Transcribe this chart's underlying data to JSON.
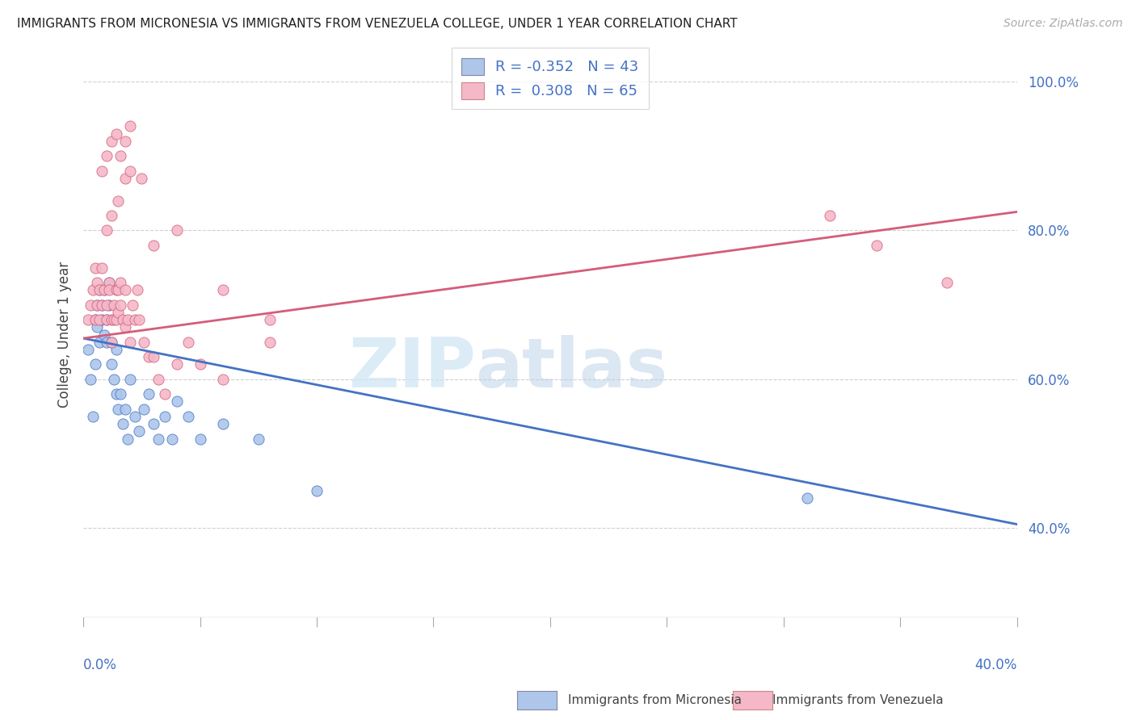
{
  "title": "IMMIGRANTS FROM MICRONESIA VS IMMIGRANTS FROM VENEZUELA COLLEGE, UNDER 1 YEAR CORRELATION CHART",
  "source": "Source: ZipAtlas.com",
  "ylabel": "College, Under 1 year",
  "ylabel_right_ticks": [
    "40.0%",
    "60.0%",
    "80.0%",
    "100.0%"
  ],
  "ylabel_right_vals": [
    0.4,
    0.6,
    0.8,
    1.0
  ],
  "xmin": 0.0,
  "xmax": 0.4,
  "ymin": 0.28,
  "ymax": 1.04,
  "legend_blue_R": "-0.352",
  "legend_blue_N": "43",
  "legend_pink_R": "0.308",
  "legend_pink_N": "65",
  "blue_color": "#adc6ea",
  "pink_color": "#f4b8c8",
  "line_blue_color": "#4472c4",
  "line_pink_color": "#d45c7a",
  "watermark_zip": "ZIP",
  "watermark_atlas": "atlas",
  "blue_line_x0": 0.0,
  "blue_line_y0": 0.655,
  "blue_line_x1": 0.4,
  "blue_line_y1": 0.405,
  "pink_line_x0": 0.0,
  "pink_line_y0": 0.655,
  "pink_line_x1": 0.4,
  "pink_line_y1": 0.825,
  "blue_points_x": [
    0.002,
    0.003,
    0.004,
    0.005,
    0.005,
    0.006,
    0.006,
    0.007,
    0.007,
    0.008,
    0.008,
    0.009,
    0.009,
    0.01,
    0.01,
    0.011,
    0.011,
    0.012,
    0.012,
    0.013,
    0.014,
    0.014,
    0.015,
    0.016,
    0.017,
    0.018,
    0.019,
    0.02,
    0.022,
    0.024,
    0.026,
    0.028,
    0.03,
    0.032,
    0.035,
    0.038,
    0.04,
    0.045,
    0.05,
    0.06,
    0.075,
    0.1,
    0.31
  ],
  "blue_points_y": [
    0.64,
    0.6,
    0.55,
    0.68,
    0.62,
    0.7,
    0.67,
    0.72,
    0.65,
    0.68,
    0.7,
    0.66,
    0.72,
    0.68,
    0.65,
    0.7,
    0.73,
    0.65,
    0.62,
    0.6,
    0.58,
    0.64,
    0.56,
    0.58,
    0.54,
    0.56,
    0.52,
    0.6,
    0.55,
    0.53,
    0.56,
    0.58,
    0.54,
    0.52,
    0.55,
    0.52,
    0.57,
    0.55,
    0.52,
    0.54,
    0.52,
    0.45,
    0.44
  ],
  "pink_points_x": [
    0.002,
    0.003,
    0.004,
    0.005,
    0.005,
    0.006,
    0.006,
    0.007,
    0.007,
    0.008,
    0.008,
    0.009,
    0.01,
    0.01,
    0.011,
    0.011,
    0.012,
    0.012,
    0.013,
    0.013,
    0.014,
    0.014,
    0.015,
    0.015,
    0.016,
    0.016,
    0.017,
    0.018,
    0.018,
    0.019,
    0.02,
    0.021,
    0.022,
    0.023,
    0.024,
    0.026,
    0.028,
    0.03,
    0.032,
    0.035,
    0.04,
    0.045,
    0.05,
    0.06,
    0.08,
    0.01,
    0.012,
    0.015,
    0.018,
    0.02,
    0.008,
    0.01,
    0.012,
    0.014,
    0.016,
    0.018,
    0.02,
    0.025,
    0.03,
    0.04,
    0.06,
    0.08,
    0.32,
    0.34,
    0.37
  ],
  "pink_points_y": [
    0.68,
    0.7,
    0.72,
    0.68,
    0.75,
    0.73,
    0.7,
    0.68,
    0.72,
    0.7,
    0.75,
    0.72,
    0.7,
    0.68,
    0.73,
    0.72,
    0.68,
    0.65,
    0.7,
    0.68,
    0.72,
    0.68,
    0.72,
    0.69,
    0.73,
    0.7,
    0.68,
    0.67,
    0.72,
    0.68,
    0.65,
    0.7,
    0.68,
    0.72,
    0.68,
    0.65,
    0.63,
    0.63,
    0.6,
    0.58,
    0.62,
    0.65,
    0.62,
    0.6,
    0.65,
    0.8,
    0.82,
    0.84,
    0.87,
    0.88,
    0.88,
    0.9,
    0.92,
    0.93,
    0.9,
    0.92,
    0.94,
    0.87,
    0.78,
    0.8,
    0.72,
    0.68,
    0.82,
    0.78,
    0.73
  ]
}
